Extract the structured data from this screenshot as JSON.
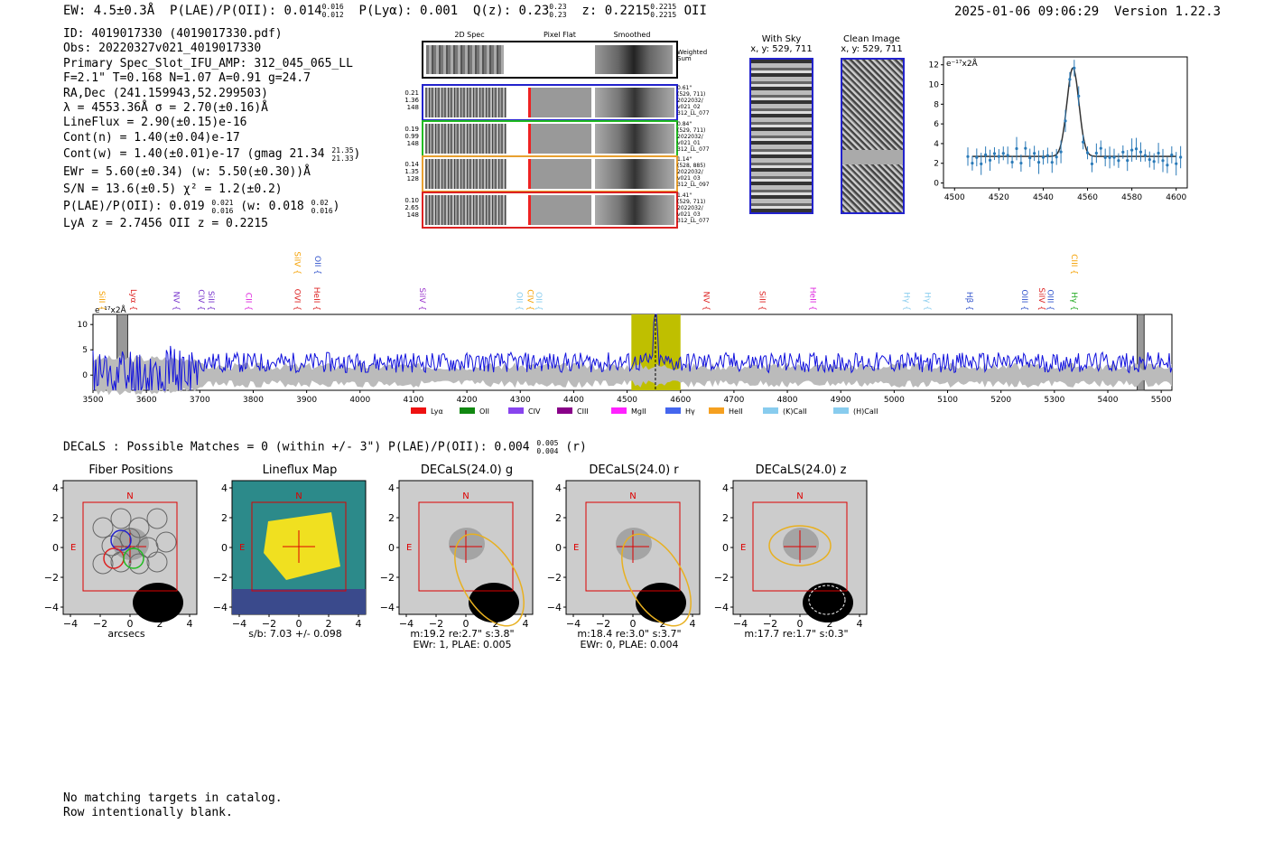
{
  "header": {
    "ew": "EW: 4.5±0.3Å",
    "plae_label": "P(LAE)/P(OII): 0.014",
    "plae_hi": "0.016",
    "plae_lo": "0.012",
    "plya": "P(Lyα): 0.001",
    "qz_label": "Q(z): 0.23",
    "qz_hi": "0.23",
    "qz_lo": "0.23",
    "z_label": "z: 0.2215",
    "z_hi": "0.2215",
    "z_lo": "0.2215",
    "z_line": "OII",
    "timestamp": "2025-01-06 09:06:29",
    "version": "Version 1.22.3"
  },
  "info": {
    "id": "ID: 4019017330 (4019017330.pdf)",
    "obs": "Obs: 20220327v021_4019017330",
    "primary": "Primary Spec_Slot_IFU_AMP: 312_045_065_LL",
    "params": "F=2.1\"  T=0.168  N=1.07  A=0.91  g=24.7",
    "radec": "RA,Dec (241.159943,52.299503)",
    "lambda": "λ = 4553.36Å  σ = 2.70(±0.16)Å",
    "lineflux": "LineFlux = 2.90(±0.15)e-16",
    "contn": "Cont(n) = 1.40(±0.04)e-17",
    "contw_label": "Cont(w) = 1.40(±0.01)e-17 (gmag 21.34",
    "contw_hi": "21.35",
    "contw_lo": "21.33",
    "contw_end": ")",
    "ewr": "EWr = 5.60(±0.34)  (w: 5.50(±0.30))Å",
    "sn": "S/N = 13.6(±0.5)  χ² = 1.2(±0.2)",
    "plae_label": "P(LAE)/P(OII): 0.019",
    "plae_hi": "0.021",
    "plae_lo": "0.016",
    "plae_w_label": "(w: 0.018",
    "plae_w_hi": "0.02",
    "plae_w_lo": "0.016",
    "plae_w_end": ")",
    "lya": "LyA z = 2.7456  OII z = 0.2215"
  },
  "spec2d": {
    "col_titles": [
      "2D Spec",
      "Pixel Flat",
      "Smoothed"
    ],
    "weighted_label": "Weighted Sum",
    "rows": [
      {
        "nums": [
          "0.21",
          "1.36",
          "148"
        ],
        "right": [
          "0.61\"",
          "(529, 711)",
          "2022032/",
          "v021_02",
          "312_LL_077"
        ],
        "color": "#2222cc"
      },
      {
        "nums": [
          "0.19",
          "0.99",
          "148"
        ],
        "right": [
          "0.84\"",
          "(529, 711)",
          "2022032/",
          "v021_01",
          "312_LL_077"
        ],
        "color": "#22bb22"
      },
      {
        "nums": [
          "0.14",
          "1.35",
          "128"
        ],
        "right": [
          "1.14\"",
          "(528, 885)",
          "2022032/",
          "v021_03",
          "312_LL_097"
        ],
        "color": "#e8a030"
      },
      {
        "nums": [
          "0.10",
          "2.65",
          "148"
        ],
        "right": [
          "1.41\"",
          "(529, 711)",
          "2022032/",
          "v021_03",
          "312_LL_077"
        ],
        "color": "#dd2222"
      }
    ]
  },
  "sky": {
    "with_sky_title": "With Sky",
    "with_sky_coords": "x, y: 529, 711",
    "clean_title": "Clean Image",
    "clean_coords": "x, y: 529, 711"
  },
  "zoom_plot": {
    "units": "e⁻¹⁷x2Å",
    "x_ticks": [
      "4500",
      "4520",
      "4540",
      "4560",
      "4580",
      "4600"
    ],
    "y_ticks": [
      "0",
      "2",
      "4",
      "6",
      "8",
      "10",
      "12"
    ]
  },
  "full_spec": {
    "units": "e⁻¹⁷x2Å",
    "x_ticks": [
      "3500",
      "3600",
      "3700",
      "3800",
      "3900",
      "4000",
      "4100",
      "4200",
      "4300",
      "4400",
      "4500",
      "4600",
      "4700",
      "4800",
      "4900",
      "5000",
      "5100",
      "5200",
      "5300",
      "5400",
      "5500"
    ],
    "y_ticks": [
      "0",
      "5",
      "10"
    ],
    "line_labels": [
      {
        "text": "SiII",
        "color": "#f5a000",
        "pos": 0.006,
        "row": 0
      },
      {
        "text": "Lyα",
        "color": "#dd2222",
        "pos": 0.035,
        "row": 0
      },
      {
        "text": "NV",
        "color": "#7733cc",
        "pos": 0.075,
        "row": 0
      },
      {
        "text": "CIV",
        "color": "#7733cc",
        "pos": 0.098,
        "row": 0
      },
      {
        "text": "SiII",
        "color": "#7733cc",
        "pos": 0.107,
        "row": 0
      },
      {
        "text": "CII",
        "color": "#dd22dd",
        "pos": 0.142,
        "row": 0
      },
      {
        "text": "OVI",
        "color": "#dd2222",
        "pos": 0.187,
        "row": 0
      },
      {
        "text": "SiIV",
        "color": "#f5a000",
        "pos": 0.187,
        "row": 1
      },
      {
        "text": "OII",
        "color": "#3355cc",
        "pos": 0.206,
        "row": 1
      },
      {
        "text": "HeII",
        "color": "#dd2222",
        "pos": 0.205,
        "row": 0
      },
      {
        "text": "SiIV",
        "color": "#9933cc",
        "pos": 0.303,
        "row": 0
      },
      {
        "text": "OII",
        "color": "#88ccee",
        "pos": 0.393,
        "row": 0
      },
      {
        "text": "CIV",
        "color": "#f5a000",
        "pos": 0.403,
        "row": 0
      },
      {
        "text": "OII",
        "color": "#88ccee",
        "pos": 0.411,
        "row": 0
      },
      {
        "text": "NV",
        "color": "#dd2222",
        "pos": 0.566,
        "row": 0
      },
      {
        "text": "SiII",
        "color": "#dd2222",
        "pos": 0.618,
        "row": 0
      },
      {
        "text": "HeII",
        "color": "#dd22dd",
        "pos": 0.665,
        "row": 0
      },
      {
        "text": "Hγ",
        "color": "#88ccee",
        "pos": 0.752,
        "row": 0
      },
      {
        "text": "Hγ",
        "color": "#88ccee",
        "pos": 0.771,
        "row": 0
      },
      {
        "text": "Hβ",
        "color": "#3355cc",
        "pos": 0.81,
        "row": 0
      },
      {
        "text": "OIII",
        "color": "#3355cc",
        "pos": 0.861,
        "row": 0
      },
      {
        "text": "SiIV",
        "color": "#dd2222",
        "pos": 0.877,
        "row": 0
      },
      {
        "text": "OIII",
        "color": "#3355cc",
        "pos": 0.885,
        "row": 0
      },
      {
        "text": "CIII",
        "color": "#f5a000",
        "pos": 0.907,
        "row": 1
      },
      {
        "text": "Hγ",
        "color": "#22aa22",
        "pos": 0.907,
        "row": 0
      }
    ],
    "legend": [
      {
        "label": "Lyα",
        "color": "#ee1111"
      },
      {
        "label": "OII",
        "color": "#118811"
      },
      {
        "label": "CIV",
        "color": "#8844ee"
      },
      {
        "label": "CIII",
        "color": "#880088"
      },
      {
        "label": "MgII",
        "color": "#ff22ff"
      },
      {
        "label": "Hγ",
        "color": "#4466ee"
      },
      {
        "label": "HeII",
        "color": "#f5a020"
      },
      {
        "label": "(K)CaII",
        "color": "#88ccee"
      },
      {
        "label": "(H)CaII",
        "color": "#88ccee"
      }
    ]
  },
  "decals": {
    "summary_label": "DECaLS : Possible Matches = 0 (within +/- 3\")  P(LAE)/P(OII): 0.004",
    "summary_hi": "0.005",
    "summary_lo": "0.004",
    "summary_end": "(r)",
    "panels": [
      {
        "title": "Fiber Positions",
        "cap1": "arcsecs",
        "cap2": ""
      },
      {
        "title": "Lineflux Map",
        "cap1": "s/b: 7.03 +/- 0.098",
        "cap2": ""
      },
      {
        "title": "DECaLS(24.0) g",
        "cap1": "m:19.2  re:2.7\"  s:3.8\"",
        "cap2": "EWr: 1, PLAE: 0.005"
      },
      {
        "title": "DECaLS(24.0) r",
        "cap1": "m:18.4  re:3.0\"  s:3.7\"",
        "cap2": "EWr: 0, PLAE: 0.004"
      },
      {
        "title": "DECaLS(24.0) z",
        "cap1": "m:17.7  re:1.7\"  s:0.3\"",
        "cap2": ""
      }
    ],
    "y_ticks": [
      "4",
      "2",
      "0",
      "−2",
      "−4"
    ],
    "x_ticks": [
      "−4",
      "−2",
      "0",
      "2",
      "4"
    ],
    "north_label": "N",
    "east_label": "E"
  },
  "footer": {
    "line1": "No matching targets in catalog.",
    "line2": "Row intentionally blank."
  }
}
